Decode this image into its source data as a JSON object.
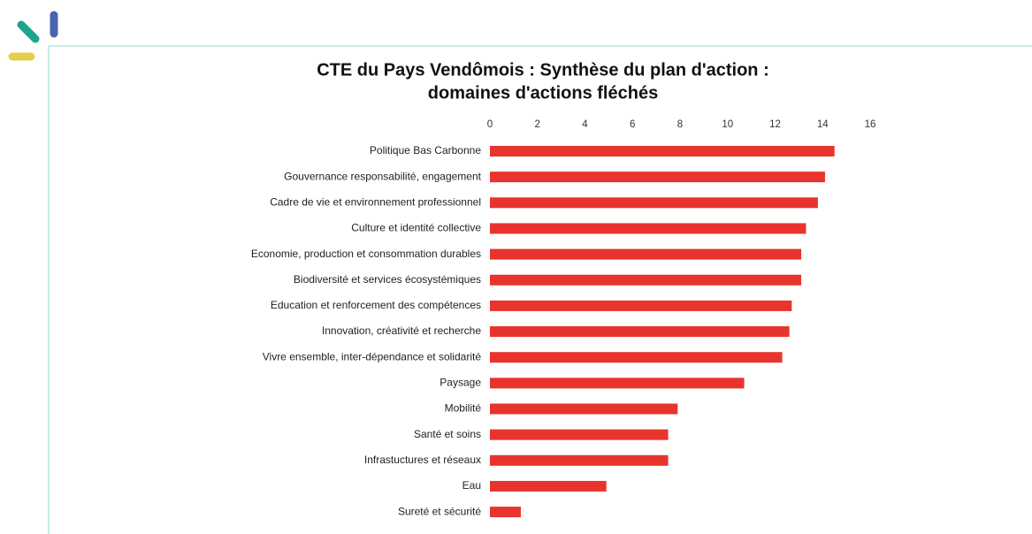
{
  "chart_data": {
    "type": "hbar",
    "title": [
      "CTE du Pays Vendômois : Synthèse du plan d'action :",
      "domaines d'actions fléchés"
    ],
    "categories": [
      "Politique Bas Carbonne",
      "Gouvernance responsabilité, engagement",
      "Cadre de vie et environnement professionnel",
      "Culture et identité collective",
      "Economie, production et consommation durables",
      "Biodiversité et services écosystémiques",
      "Education et renforcement des compétences",
      "Innovation, créativité et recherche",
      "Vivre ensemble, inter-dépendance et solidarité",
      "Paysage",
      "Mobilité",
      "Santé et soins",
      "Infrastuctures et réseaux",
      "Eau",
      "Sureté et sécurité"
    ],
    "values": [
      14.5,
      14.1,
      13.8,
      13.3,
      13.1,
      13.1,
      12.7,
      12.6,
      12.3,
      10.7,
      7.9,
      7.5,
      7.5,
      4.9,
      1.3
    ],
    "color": "#e8342c",
    "xlim": [
      0,
      16
    ],
    "xticks": [
      0,
      2,
      4,
      6,
      8,
      10,
      12,
      14,
      16
    ]
  }
}
